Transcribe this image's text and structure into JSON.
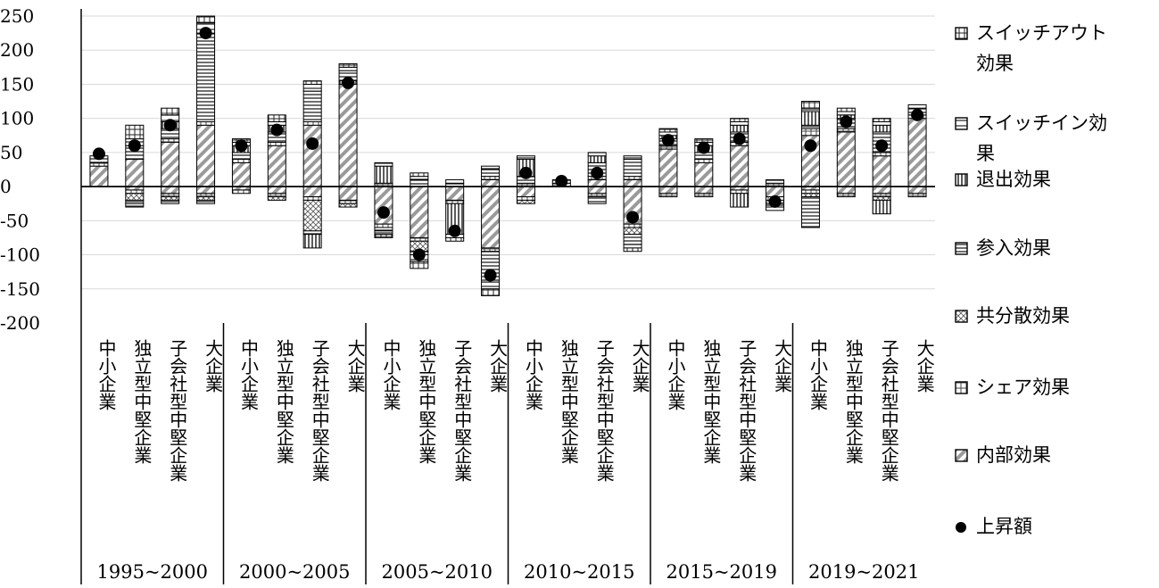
{
  "chart_data": {
    "type": "bar",
    "stacked": true,
    "title": "",
    "xlabel": "",
    "ylabel": "",
    "ylim": [
      -200,
      250
    ],
    "yticks": [
      250,
      200,
      150,
      100,
      50,
      0,
      -50,
      -100,
      -150,
      -200
    ],
    "yticks_text": [
      "250",
      "200",
      "150",
      "100",
      "50",
      "0",
      "-50",
      "-100",
      "-150",
      "-200"
    ],
    "grid": true,
    "legend_position": "right",
    "periods": [
      {
        "label": "1995~2000",
        "groups": [
          {
            "name": "中小企業",
            "components": {
              "internal": 30,
              "share": 5,
              "covariance": 0,
              "entry": 10,
              "exit": 0,
              "switch_in": 0,
              "switch_out": 0
            },
            "rise": 48
          },
          {
            "name": "独立型中堅企業",
            "components": {
              "internal": 40,
              "share": 0,
              "covariance": -10,
              "entry": 20,
              "exit": 0,
              "switch_in": 10,
              "switch_out": 20
            },
            "rise": 60,
            "negatives": {
              "internal": -5,
              "share": -5,
              "covariance": -10,
              "entry": -5,
              "exit": 0,
              "switch_in": -5,
              "switch_out": 0
            }
          },
          {
            "name": "子会社型中堅企業",
            "components": {
              "internal": 65,
              "share": 5,
              "covariance": 0,
              "entry": 15,
              "exit": 10,
              "switch_in": 10,
              "switch_out": 10
            },
            "rise": 90,
            "negatives": {
              "internal": -10,
              "share": -5,
              "covariance": -5,
              "entry": -5,
              "exit": 0,
              "switch_in": 0,
              "switch_out": 0
            }
          },
          {
            "name": "大企業",
            "components": {
              "internal": 90,
              "share": 5,
              "covariance": 0,
              "entry": 130,
              "exit": 0,
              "switch_in": 15,
              "switch_out": 10
            },
            "rise": 225,
            "negatives": {
              "internal": -10,
              "share": -5,
              "covariance": -5,
              "entry": -5,
              "exit": 0,
              "switch_in": 0,
              "switch_out": 0
            }
          }
        ]
      },
      {
        "label": "2000~2005",
        "groups": [
          {
            "name": "中小企業",
            "components": {
              "internal": 35,
              "share": 5,
              "covariance": 0,
              "entry": 10,
              "exit": 10,
              "switch_in": 5,
              "switch_out": 5
            },
            "rise": 60,
            "negatives": {
              "internal": -5,
              "share": -5,
              "covariance": 0,
              "entry": 0,
              "exit": 0,
              "switch_in": 0,
              "switch_out": 0
            }
          },
          {
            "name": "独立型中堅企業",
            "components": {
              "internal": 60,
              "share": 5,
              "covariance": 0,
              "entry": 15,
              "exit": 10,
              "switch_in": 5,
              "switch_out": 10
            },
            "rise": 83,
            "negatives": {
              "internal": -10,
              "share": -5,
              "covariance": -5,
              "entry": 0,
              "exit": 0,
              "switch_in": 0,
              "switch_out": 0
            }
          },
          {
            "name": "子会社型中堅企業",
            "components": {
              "internal": 90,
              "share": 5,
              "covariance": 0,
              "entry": 45,
              "exit": 0,
              "switch_in": 10,
              "switch_out": 5
            },
            "rise": 63,
            "negatives": {
              "internal": -15,
              "share": -5,
              "covariance": -45,
              "entry": -5,
              "exit": -20,
              "switch_in": 0,
              "switch_out": 0
            }
          },
          {
            "name": "大企業",
            "components": {
              "internal": 150,
              "share": 5,
              "covariance": 0,
              "entry": 15,
              "exit": 0,
              "switch_in": 5,
              "switch_out": 5
            },
            "rise": 152,
            "negatives": {
              "internal": -20,
              "share": -5,
              "covariance": -5,
              "entry": 0,
              "exit": 0,
              "switch_in": 0,
              "switch_out": 0
            }
          }
        ]
      },
      {
        "label": "2005~2010",
        "groups": [
          {
            "name": "中小企業",
            "components": {
              "internal": 0,
              "share": 5,
              "covariance": 0,
              "entry": 0,
              "exit": 25,
              "switch_in": 5,
              "switch_out": 0
            },
            "rise": -38,
            "negatives": {
              "internal": -55,
              "share": -5,
              "covariance": 0,
              "entry": -5,
              "exit": 0,
              "switch_in": -5,
              "switch_out": -5
            }
          },
          {
            "name": "独立型中堅企業",
            "components": {
              "internal": 0,
              "share": 0,
              "covariance": 0,
              "entry": 10,
              "exit": 0,
              "switch_in": 5,
              "switch_out": 5
            },
            "rise": -100,
            "negatives": {
              "internal": -75,
              "share": -5,
              "covariance": -15,
              "entry": -5,
              "exit": 0,
              "switch_in": -10,
              "switch_out": -10
            }
          },
          {
            "name": "子会社型中堅企業",
            "components": {
              "internal": 0,
              "share": 0,
              "covariance": 0,
              "entry": 5,
              "exit": 0,
              "switch_in": 5,
              "switch_out": 0
            },
            "rise": -65,
            "negatives": {
              "internal": -20,
              "share": -5,
              "covariance": 0,
              "entry": 0,
              "exit": -45,
              "switch_in": -5,
              "switch_out": -5
            }
          },
          {
            "name": "大企業",
            "components": {
              "internal": 10,
              "share": 5,
              "covariance": 0,
              "entry": 10,
              "exit": 0,
              "switch_in": 5,
              "switch_out": 0
            },
            "rise": -130,
            "negatives": {
              "internal": -90,
              "share": -5,
              "covariance": 0,
              "entry": -45,
              "exit": 0,
              "switch_in": -10,
              "switch_out": -10
            }
          }
        ]
      },
      {
        "label": "2010~2015",
        "groups": [
          {
            "name": "中小企業",
            "components": {
              "internal": 0,
              "share": 5,
              "covariance": 0,
              "entry": 10,
              "exit": 25,
              "switch_in": 5,
              "switch_out": 0
            },
            "rise": 20,
            "negatives": {
              "internal": -15,
              "share": -5,
              "covariance": -5,
              "entry": 0,
              "exit": 0,
              "switch_in": 0,
              "switch_out": 0
            }
          },
          {
            "name": "独立型中堅企業",
            "components": {
              "internal": 5,
              "share": 0,
              "covariance": 0,
              "entry": 5,
              "exit": 0,
              "switch_in": 0,
              "switch_out": 0
            },
            "rise": 8
          },
          {
            "name": "子会社型中堅企業",
            "components": {
              "internal": 10,
              "share": 5,
              "covariance": 0,
              "entry": 20,
              "exit": 10,
              "switch_in": 5,
              "switch_out": 0
            },
            "rise": 20,
            "negatives": {
              "internal": -10,
              "share": -5,
              "covariance": 0,
              "entry": -10,
              "exit": 0,
              "switch_in": 0,
              "switch_out": 0
            }
          },
          {
            "name": "大企業",
            "components": {
              "internal": 10,
              "share": 5,
              "covariance": 0,
              "entry": 25,
              "exit": 0,
              "switch_in": 5,
              "switch_out": 0
            },
            "rise": -45,
            "negatives": {
              "internal": -55,
              "share": -5,
              "covariance": -10,
              "entry": -15,
              "exit": 0,
              "switch_in": -5,
              "switch_out": -5
            }
          }
        ]
      },
      {
        "label": "2015~2019",
        "groups": [
          {
            "name": "中小企業",
            "components": {
              "internal": 55,
              "share": 5,
              "covariance": 0,
              "entry": 10,
              "exit": 5,
              "switch_in": 5,
              "switch_out": 5
            },
            "rise": 68,
            "negatives": {
              "internal": -10,
              "share": -5,
              "covariance": 0,
              "entry": 0,
              "exit": 0,
              "switch_in": 0,
              "switch_out": 0
            }
          },
          {
            "name": "独立型中堅企業",
            "components": {
              "internal": 35,
              "share": 5,
              "covariance": 0,
              "entry": 10,
              "exit": 10,
              "switch_in": 5,
              "switch_out": 5
            },
            "rise": 57,
            "negatives": {
              "internal": -10,
              "share": -5,
              "covariance": 0,
              "entry": 0,
              "exit": 0,
              "switch_in": 0,
              "switch_out": 0
            }
          },
          {
            "name": "子会社型中堅企業",
            "components": {
              "internal": 60,
              "share": 5,
              "covariance": 0,
              "entry": 15,
              "exit": 10,
              "switch_in": 5,
              "switch_out": 5
            },
            "rise": 70,
            "negatives": {
              "internal": -5,
              "share": -5,
              "covariance": 0,
              "entry": 0,
              "exit": -20,
              "switch_in": 0,
              "switch_out": 0
            }
          },
          {
            "name": "大企業",
            "components": {
              "internal": 0,
              "share": 5,
              "covariance": 0,
              "entry": 5,
              "exit": 0,
              "switch_in": 0,
              "switch_out": 0
            },
            "rise": -22,
            "negatives": {
              "internal": -15,
              "share": -5,
              "covariance": -5,
              "entry": -5,
              "exit": 0,
              "switch_in": -5,
              "switch_out": 0
            }
          }
        ]
      },
      {
        "label": "2019~2021",
        "groups": [
          {
            "name": "中小企業",
            "components": {
              "internal": 75,
              "share": 10,
              "covariance": 0,
              "entry": 5,
              "exit": 20,
              "switch_in": 5,
              "switch_out": 10
            },
            "rise": 60,
            "negatives": {
              "internal": -5,
              "share": -5,
              "covariance": -5,
              "entry": -45,
              "exit": 0,
              "switch_in": 0,
              "switch_out": 0
            }
          },
          {
            "name": "独立型中堅企業",
            "components": {
              "internal": 80,
              "share": 5,
              "covariance": 0,
              "entry": 15,
              "exit": 5,
              "switch_in": 5,
              "switch_out": 5
            },
            "rise": 95,
            "negatives": {
              "internal": -10,
              "share": -5,
              "covariance": 0,
              "entry": 0,
              "exit": 0,
              "switch_in": 0,
              "switch_out": 0
            }
          },
          {
            "name": "子会社型中堅企業",
            "components": {
              "internal": 45,
              "share": 5,
              "covariance": 0,
              "entry": 30,
              "exit": 10,
              "switch_in": 5,
              "switch_out": 5
            },
            "rise": 60,
            "negatives": {
              "internal": -10,
              "share": -5,
              "covariance": -5,
              "entry": 0,
              "exit": -20,
              "switch_in": 0,
              "switch_out": 0
            }
          },
          {
            "name": "大企業",
            "components": {
              "internal": 100,
              "share": 5,
              "covariance": 0,
              "entry": 10,
              "exit": 0,
              "switch_in": 5,
              "switch_out": 0
            },
            "rise": 105,
            "negatives": {
              "internal": -10,
              "share": -5,
              "covariance": 0,
              "entry": 0,
              "exit": 0,
              "switch_in": 0,
              "switch_out": 0
            }
          }
        ]
      }
    ],
    "legend": [
      {
        "key": "switch_out",
        "label": "スイッチアウト効果",
        "lines": [
          "スイッチアウト",
          "効果"
        ]
      },
      {
        "key": "switch_in",
        "label": "スイッチイン効果",
        "lines": [
          "スイッチイン効",
          "果"
        ]
      },
      {
        "key": "exit",
        "label": "退出効果",
        "lines": [
          "退出効果"
        ]
      },
      {
        "key": "entry",
        "label": "参入効果",
        "lines": [
          "参入効果"
        ]
      },
      {
        "key": "covariance",
        "label": "共分散効果",
        "lines": [
          "共分散効果"
        ]
      },
      {
        "key": "share",
        "label": "シェア効果",
        "lines": [
          "シェア効果"
        ]
      },
      {
        "key": "internal",
        "label": "内部効果",
        "lines": [
          "内部効果"
        ]
      },
      {
        "key": "rise",
        "label": "上昇額",
        "lines": [
          "上昇額"
        ]
      }
    ],
    "colors": {
      "axis": "#000000",
      "grid": "#d9d9d9",
      "bar_fill": "#ffffff",
      "pattern": "#555555",
      "dot": "#000000"
    }
  }
}
